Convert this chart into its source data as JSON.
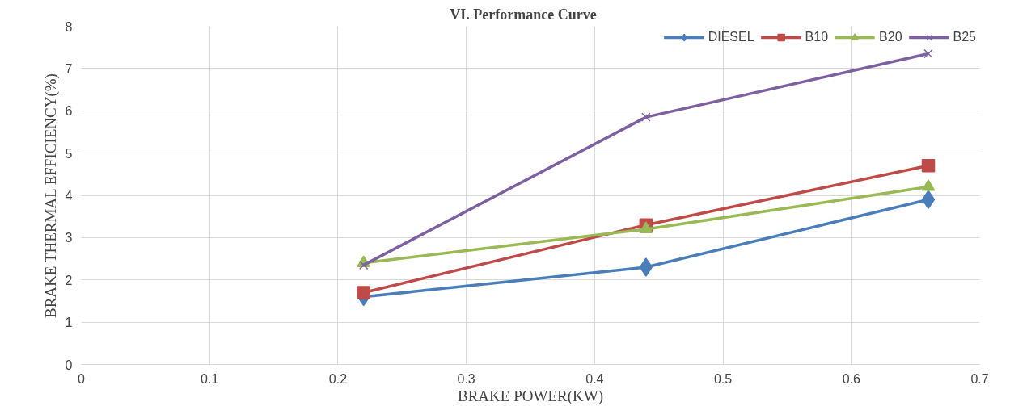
{
  "chart_data": {
    "type": "line",
    "title": "VI.     Performance Curve",
    "xlabel": "BRAKE POWER(KW)",
    "ylabel": "BRAKE THERMAL EFFICIENCY(%)",
    "x": [
      0.22,
      0.44,
      0.66
    ],
    "series": [
      {
        "name": "DIESEL",
        "color": "#4a7ebb",
        "marker": "diamond",
        "values": [
          1.6,
          2.3,
          3.9
        ]
      },
      {
        "name": "B10",
        "color": "#be4b48",
        "marker": "square",
        "values": [
          1.7,
          3.3,
          4.7
        ]
      },
      {
        "name": "B20",
        "color": "#98b954",
        "marker": "triangle",
        "values": [
          2.4,
          3.2,
          4.2
        ]
      },
      {
        "name": "B25",
        "color": "#7d60a0",
        "marker": "cross",
        "values": [
          2.35,
          5.85,
          7.35
        ]
      }
    ],
    "xlim": [
      0,
      0.7
    ],
    "xticks": [
      0,
      0.1,
      0.2,
      0.3,
      0.4,
      0.5,
      0.6,
      0.7
    ],
    "ylim": [
      0,
      8
    ],
    "yticks": [
      0,
      1,
      2,
      3,
      4,
      5,
      6,
      7,
      8
    ],
    "grid": true,
    "legend": "top right"
  }
}
